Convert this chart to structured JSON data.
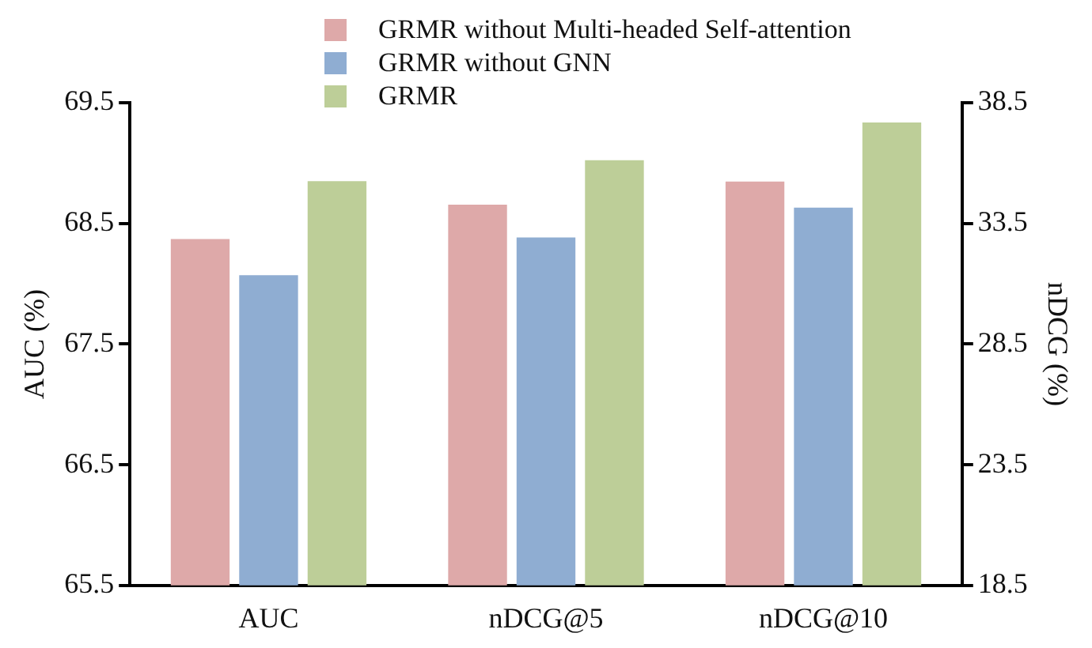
{
  "chart_data": {
    "type": "bar",
    "ylabel": "AUC (%)",
    "y2label": "nDCG (%)",
    "legend": "top",
    "categories": [
      "AUC",
      "nDCG@5",
      "nDCG@10"
    ],
    "ylim": [
      65.5,
      69.5
    ],
    "yticks": [
      65.5,
      66.5,
      67.5,
      68.5,
      69.5
    ],
    "y2lim": [
      18.5,
      38.5
    ],
    "y2ticks": [
      18.5,
      23.5,
      28.5,
      33.5,
      38.5
    ],
    "series": [
      {
        "name": "GRMR without Multi-headed Self-attention",
        "color": "#dea9a9",
        "values": [
          68.37,
          null,
          null
        ]
      },
      {
        "name": "GRMR without GNN",
        "color": "#8fadd2",
        "values": [
          68.07,
          null,
          null
        ]
      },
      {
        "name": "GRMR",
        "color": "#bdce98",
        "values": [
          68.85,
          null,
          null
        ]
      },
      {
        "color": "#dea9a9",
        "axis": "y2",
        "values": [
          null,
          34.28,
          35.23
        ]
      },
      {
        "color": "#8fadd2",
        "axis": "y2",
        "values": [
          null,
          32.92,
          34.15
        ]
      },
      {
        "color": "#bdce98",
        "axis": "y2",
        "values": [
          null,
          36.12,
          37.68
        ]
      }
    ]
  }
}
